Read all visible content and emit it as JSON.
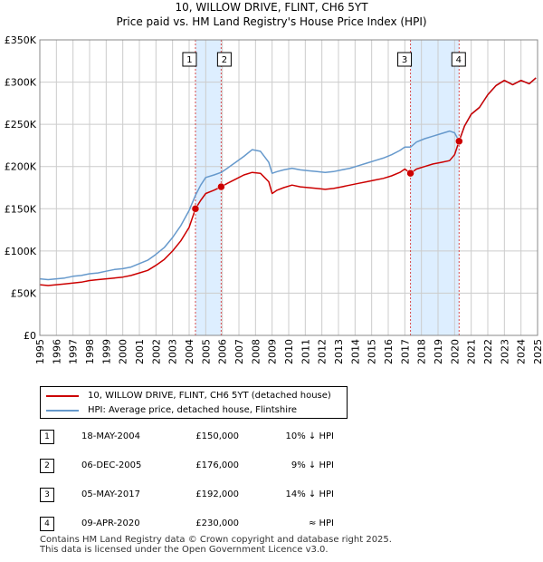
{
  "title": {
    "line1": "10, WILLOW DRIVE, FLINT, CH6 5YT",
    "line2": "Price paid vs. HM Land Registry's House Price Index (HPI)"
  },
  "legend": {
    "property_label": "10, WILLOW DRIVE, FLINT, CH6 5YT (detached house)",
    "hpi_label": "HPI: Average price, detached house, Flintshire"
  },
  "colors": {
    "property_line": "#cc0000",
    "hpi_line": "#6699cc",
    "marker": "#cc0000",
    "band": "#ddeeff",
    "grid": "#cccccc",
    "sale_vline": "#cc0000"
  },
  "sales": [
    {
      "num": "1",
      "date": "18-MAY-2004",
      "price": "£150,000",
      "hpi_rel": "10% ↓ HPI"
    },
    {
      "num": "2",
      "date": "06-DEC-2005",
      "price": "£176,000",
      "hpi_rel": "9% ↓ HPI"
    },
    {
      "num": "3",
      "date": "05-MAY-2017",
      "price": "£192,000",
      "hpi_rel": "14% ↓ HPI"
    },
    {
      "num": "4",
      "date": "09-APR-2020",
      "price": "£230,000",
      "hpi_rel": "≈ HPI"
    }
  ],
  "footer": {
    "line1": "Contains HM Land Registry data © Crown copyright and database right 2025.",
    "line2": "This data is licensed under the Open Government Licence v3.0."
  },
  "chart_data": {
    "type": "line",
    "title": "10, WILLOW DRIVE, FLINT, CH6 5YT — Price paid vs. HM Land Registry's House Price Index (HPI)",
    "xlabel": "",
    "ylabel": "",
    "xlim": [
      1995,
      2025
    ],
    "ylim": [
      0,
      350000
    ],
    "x_ticks": [
      1995,
      1996,
      1997,
      1998,
      1999,
      2000,
      2001,
      2002,
      2003,
      2004,
      2005,
      2006,
      2007,
      2008,
      2009,
      2010,
      2011,
      2012,
      2013,
      2014,
      2015,
      2016,
      2017,
      2018,
      2019,
      2020,
      2021,
      2022,
      2023,
      2024,
      2025
    ],
    "y_ticks": [
      0,
      50000,
      100000,
      150000,
      200000,
      250000,
      300000,
      350000
    ],
    "y_tick_labels": [
      "£0",
      "£50K",
      "£100K",
      "£150K",
      "£200K",
      "£250K",
      "£300K",
      "£350K"
    ],
    "grid": true,
    "shaded_periods": [
      [
        2004.38,
        2005.93
      ],
      [
        2017.34,
        2020.27
      ]
    ],
    "series": [
      {
        "name": "10, WILLOW DRIVE, FLINT, CH6 5YT (detached house)",
        "x": [
          1995.0,
          1995.5,
          1996.0,
          1996.5,
          1997.0,
          1997.5,
          1998.0,
          1998.5,
          1999.0,
          1999.5,
          2000.0,
          2000.5,
          2001.0,
          2001.5,
          2002.0,
          2002.5,
          2003.0,
          2003.5,
          2004.0,
          2004.38,
          2004.7,
          2005.0,
          2005.5,
          2005.93,
          2006.3,
          2006.8,
          2007.3,
          2007.8,
          2008.3,
          2008.8,
          2009.0,
          2009.3,
          2009.7,
          2010.2,
          2010.7,
          2011.2,
          2011.7,
          2012.2,
          2012.7,
          2013.2,
          2013.7,
          2014.2,
          2014.7,
          2015.2,
          2015.7,
          2016.2,
          2016.7,
          2017.0,
          2017.34,
          2017.7,
          2018.2,
          2018.7,
          2019.2,
          2019.7,
          2020.0,
          2020.27,
          2020.6,
          2021.0,
          2021.5,
          2022.0,
          2022.5,
          2023.0,
          2023.5,
          2024.0,
          2024.5,
          2024.9
        ],
        "values": [
          60000,
          59000,
          60000,
          61000,
          62000,
          63000,
          65000,
          66000,
          67000,
          68000,
          69000,
          71000,
          74000,
          77000,
          83000,
          90000,
          100000,
          112000,
          128000,
          150000,
          160000,
          168000,
          172000,
          176000,
          180000,
          185000,
          190000,
          193000,
          192000,
          182000,
          168000,
          172000,
          175000,
          178000,
          176000,
          175000,
          174000,
          173000,
          174000,
          176000,
          178000,
          180000,
          182000,
          184000,
          186000,
          189000,
          193000,
          197000,
          192000,
          197000,
          200000,
          203000,
          205000,
          207000,
          214000,
          230000,
          248000,
          262000,
          270000,
          285000,
          296000,
          302000,
          297000,
          302000,
          298000,
          305000
        ]
      },
      {
        "name": "HPI: Average price, detached house, Flintshire",
        "x": [
          1995.0,
          1995.5,
          1996.0,
          1996.5,
          1997.0,
          1997.5,
          1998.0,
          1998.5,
          1999.0,
          1999.5,
          2000.0,
          2000.5,
          2001.0,
          2001.5,
          2002.0,
          2002.5,
          2003.0,
          2003.5,
          2004.0,
          2004.38,
          2004.7,
          2005.0,
          2005.5,
          2005.93,
          2006.3,
          2006.8,
          2007.3,
          2007.8,
          2008.3,
          2008.8,
          2009.0,
          2009.3,
          2009.7,
          2010.2,
          2010.7,
          2011.2,
          2011.7,
          2012.2,
          2012.7,
          2013.2,
          2013.7,
          2014.2,
          2014.7,
          2015.2,
          2015.7,
          2016.2,
          2016.7,
          2017.0,
          2017.34,
          2017.7,
          2018.2,
          2018.7,
          2019.2,
          2019.7,
          2020.0,
          2020.27,
          2020.6,
          2021.0,
          2021.5,
          2022.0,
          2022.5,
          2023.0,
          2023.5,
          2024.0,
          2024.5,
          2024.9
        ],
        "values": [
          67000,
          66000,
          67000,
          68000,
          70000,
          71000,
          73000,
          74000,
          76000,
          78000,
          79000,
          81000,
          85000,
          89000,
          96000,
          104000,
          116000,
          130000,
          148000,
          166000,
          178000,
          187000,
          190000,
          193000,
          198000,
          205000,
          212000,
          220000,
          218000,
          205000,
          192000,
          194000,
          196000,
          198000,
          196000,
          195000,
          194000,
          193000,
          194000,
          196000,
          198000,
          201000,
          204000,
          207000,
          210000,
          214000,
          219000,
          223000,
          223000,
          229000,
          233000,
          236000,
          239000,
          242000,
          240000,
          230000,
          248000,
          262000,
          270000,
          285000,
          296000,
          302000,
          297000,
          302000,
          298000,
          305000
        ]
      }
    ],
    "sale_markers": [
      {
        "label": "1",
        "x": 2004.38,
        "y": 150000
      },
      {
        "label": "2",
        "x": 2005.93,
        "y": 176000
      },
      {
        "label": "3",
        "x": 2017.34,
        "y": 192000
      },
      {
        "label": "4",
        "x": 2020.27,
        "y": 230000
      }
    ]
  }
}
